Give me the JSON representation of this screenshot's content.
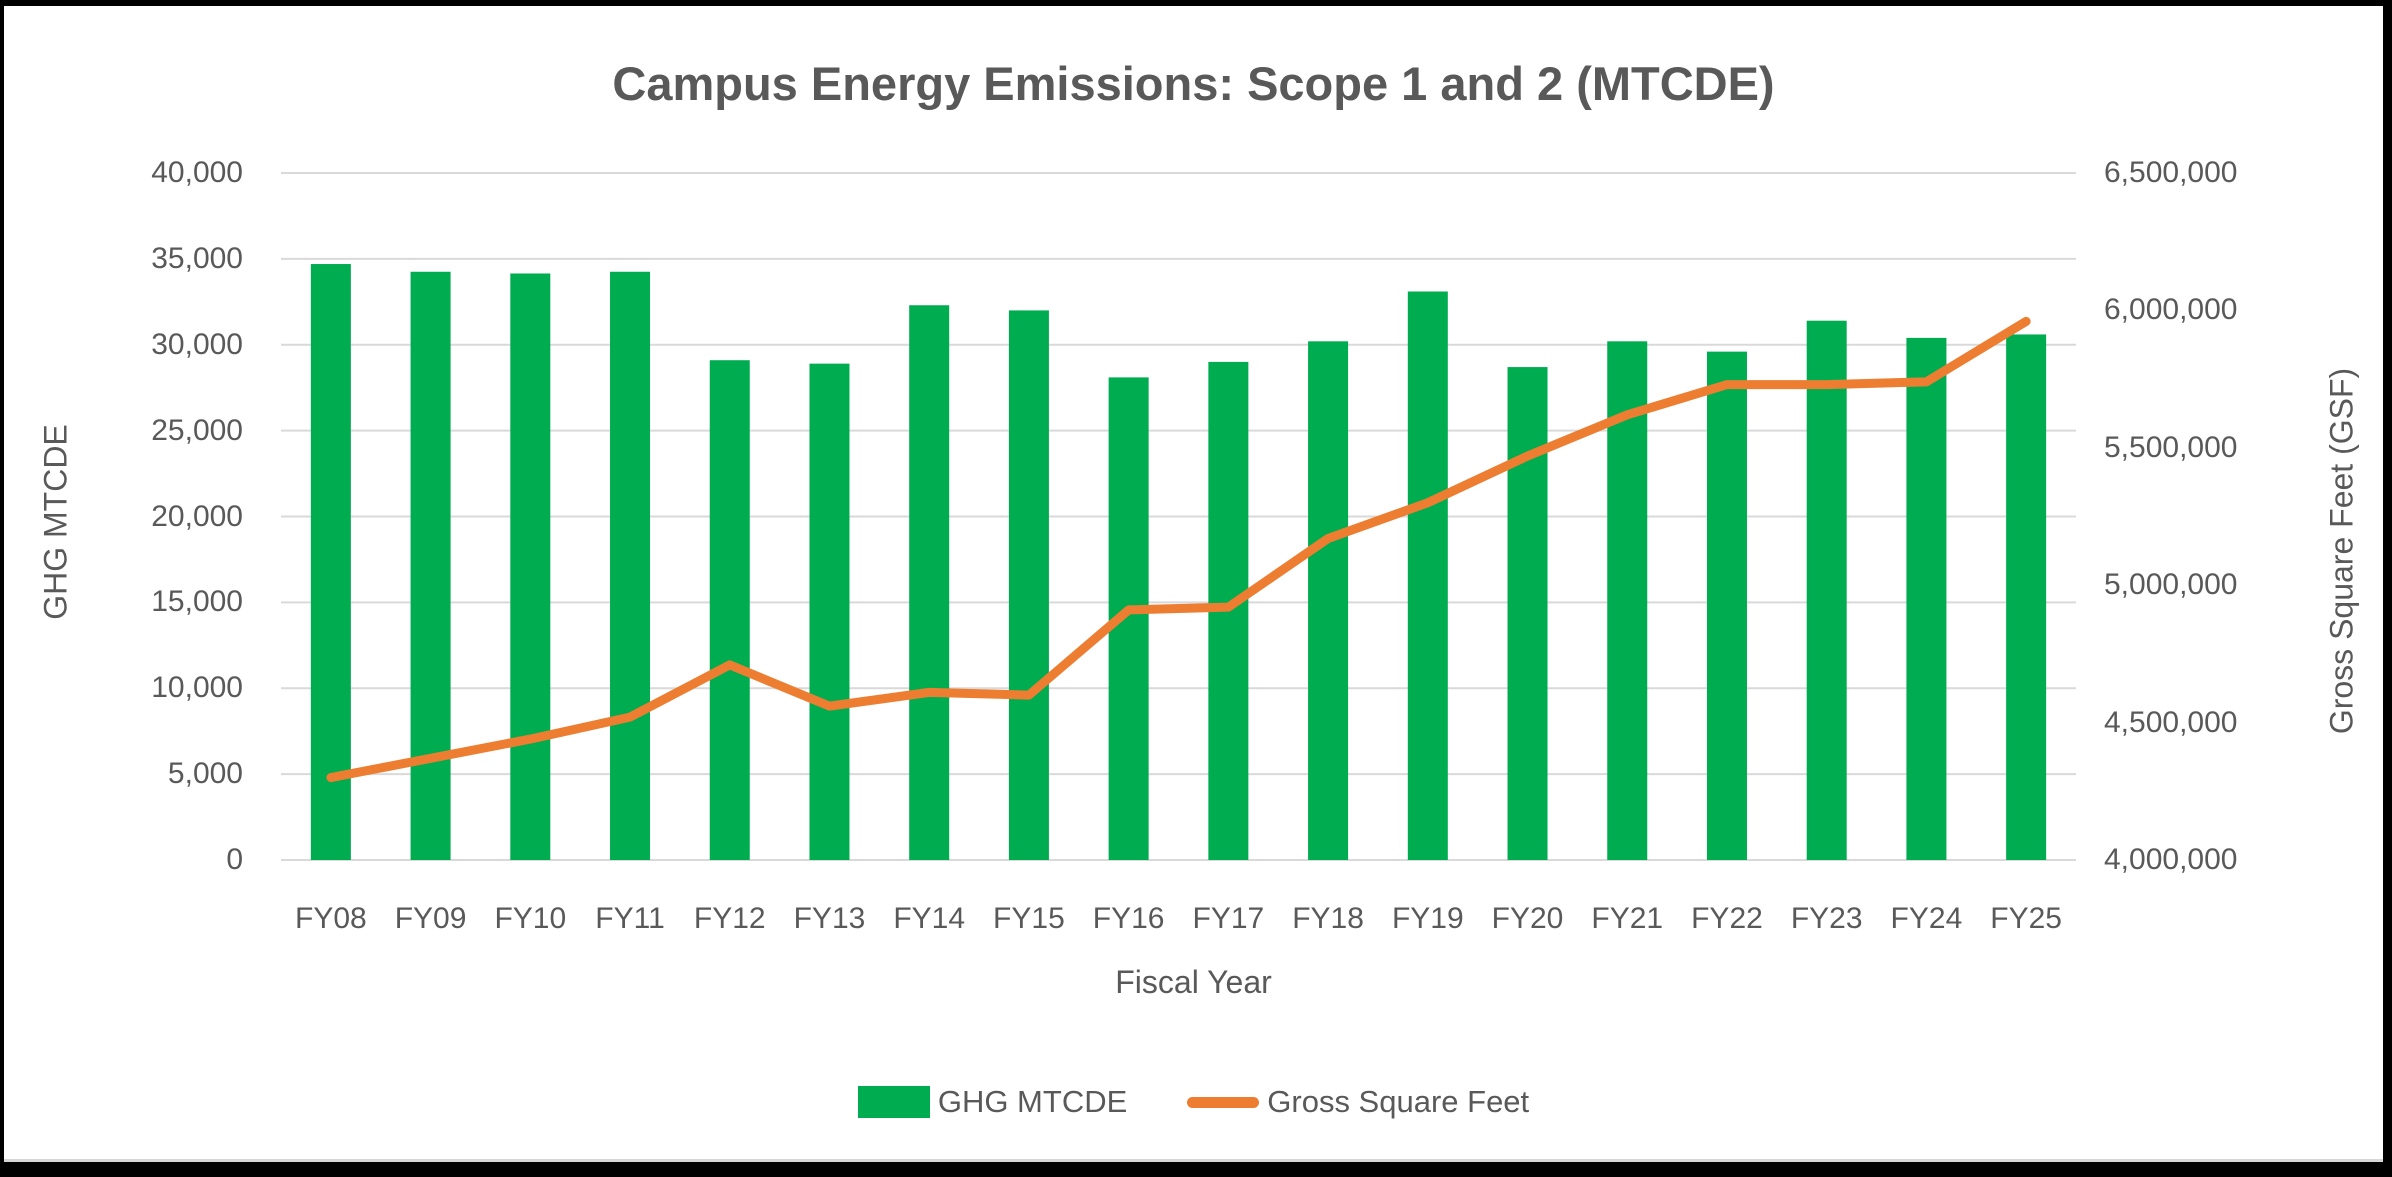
{
  "title": "Campus Energy Emissions: Scope 1 and 2 (MTCDE)",
  "axes": {
    "left_title": "GHG MTCDE",
    "right_title": "Gross Square Feet (GSF)",
    "x_title": "Fiscal Year",
    "left_tick_labels": [
      "0",
      "5,000",
      "10,000",
      "15,000",
      "20,000",
      "25,000",
      "30,000",
      "35,000",
      "40,000"
    ],
    "right_tick_labels": [
      "4,000,000",
      "4,500,000",
      "5,000,000",
      "5,500,000",
      "6,000,000",
      "6,500,000"
    ]
  },
  "legend": {
    "items": [
      {
        "label": "GHG MTCDE",
        "swatch": "bar"
      },
      {
        "label": "Gross Square Feet",
        "swatch": "line"
      }
    ]
  },
  "colors": {
    "bar_green": "#00AC50",
    "line_orange": "#ED7D31",
    "gridline": "#D9D9D9",
    "text_gray": "#595959",
    "background": "#FFFFFF",
    "frame_border": "#000000"
  },
  "chart_data": {
    "type": "bar",
    "subtype": "combo-bar-line-dual-axis",
    "title": "Campus Energy Emissions: Scope 1 and 2 (MTCDE)",
    "xlabel": "Fiscal Year",
    "categories": [
      "FY08",
      "FY09",
      "FY10",
      "FY11",
      "FY12",
      "FY13",
      "FY14",
      "FY15",
      "FY16",
      "FY17",
      "FY18",
      "FY19",
      "FY20",
      "FY21",
      "FY22",
      "FY23",
      "FY24",
      "FY25"
    ],
    "series": [
      {
        "name": "GHG MTCDE",
        "type": "bar",
        "axis": "left",
        "color": "#00AC50",
        "values": [
          34700,
          34250,
          34150,
          34250,
          29100,
          28900,
          32300,
          32000,
          28100,
          29000,
          30200,
          33100,
          28700,
          30200,
          29600,
          31400,
          30400,
          30600
        ]
      },
      {
        "name": "Gross Square Feet",
        "type": "line",
        "axis": "right",
        "color": "#ED7D31",
        "values": [
          4300000,
          4370000,
          4440000,
          4520000,
          4710000,
          4560000,
          4610000,
          4600000,
          4910000,
          4920000,
          5170000,
          5300000,
          5470000,
          5620000,
          5730000,
          5730000,
          5740000,
          5960000
        ]
      }
    ],
    "left_axis": {
      "title": "GHG MTCDE",
      "min": 0,
      "max": 40000,
      "step": 5000
    },
    "right_axis": {
      "title": "Gross Square Feet (GSF)",
      "min": 4000000,
      "max": 6500000,
      "step": 500000
    },
    "grid": "horizontal-major-only",
    "legend_position": "bottom"
  }
}
